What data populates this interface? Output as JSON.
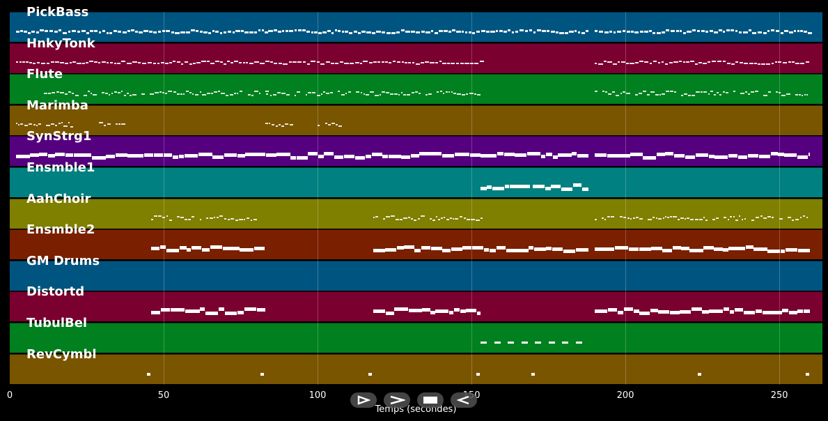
{
  "tracks": [
    {
      "name": "PickBass",
      "color": "#005580",
      "pattern": "dense",
      "segments": [
        [
          2,
          83
        ],
        [
          84,
          188
        ],
        [
          190,
          260
        ]
      ]
    },
    {
      "name": "HnkyTonk",
      "color": "#7a0030",
      "pattern": "dense",
      "segments": [
        [
          2,
          153
        ],
        [
          190,
          260
        ]
      ]
    },
    {
      "name": "Flute",
      "color": "#00801f",
      "pattern": "sparse",
      "segments": [
        [
          11,
          84
        ],
        [
          83,
          152
        ],
        [
          190,
          259
        ]
      ]
    },
    {
      "name": "Marimba",
      "color": "#7a5500",
      "pattern": "sparse",
      "segments": [
        [
          2,
          20
        ],
        [
          29,
          37
        ],
        [
          83,
          91
        ],
        [
          100,
          108
        ]
      ]
    },
    {
      "name": "SynStrg1",
      "color": "#55007f",
      "pattern": "thick",
      "segments": [
        [
          2,
          188
        ],
        [
          190,
          260
        ]
      ]
    },
    {
      "name": "Ensmble1",
      "color": "#008080",
      "pattern": "thick",
      "segments": [
        [
          153,
          169
        ],
        [
          170,
          188
        ]
      ]
    },
    {
      "name": "AahChoir",
      "color": "#7f7f00",
      "pattern": "sparse",
      "segments": [
        [
          46,
          80
        ],
        [
          118,
          153
        ],
        [
          190,
          259
        ]
      ]
    },
    {
      "name": "Ensmble2",
      "color": "#7a2000",
      "pattern": "thick",
      "segments": [
        [
          46,
          83
        ],
        [
          118,
          188
        ],
        [
          190,
          260
        ]
      ]
    },
    {
      "name": "GM Drums",
      "color": "#005580",
      "pattern": "none",
      "segments": []
    },
    {
      "name": "Distortd",
      "color": "#7a0030",
      "pattern": "thick",
      "segments": [
        [
          46,
          83
        ],
        [
          118,
          153
        ],
        [
          190,
          260
        ]
      ]
    },
    {
      "name": "TubulBel",
      "color": "#00801f",
      "pattern": "dash",
      "segments": [
        [
          153,
          186
        ]
      ]
    },
    {
      "name": "RevCymbl",
      "color": "#7a5500",
      "pattern": "dots",
      "points": [
        45,
        82,
        117,
        152,
        170,
        224,
        259
      ]
    }
  ],
  "axis": {
    "ticks": [
      "0",
      "50",
      "100",
      "150",
      "200",
      "250"
    ],
    "tick_values": [
      0,
      50,
      100,
      150,
      200,
      250
    ],
    "xmax": 264,
    "xlabel": "Temps (secondes)"
  },
  "controls": [
    {
      "name": "play-button",
      "icon": "play-outline-icon"
    },
    {
      "name": "forward-button",
      "icon": "chevron-right-icon"
    },
    {
      "name": "stop-button",
      "icon": "stop-icon"
    },
    {
      "name": "back-button",
      "icon": "rewind-icon"
    }
  ]
}
